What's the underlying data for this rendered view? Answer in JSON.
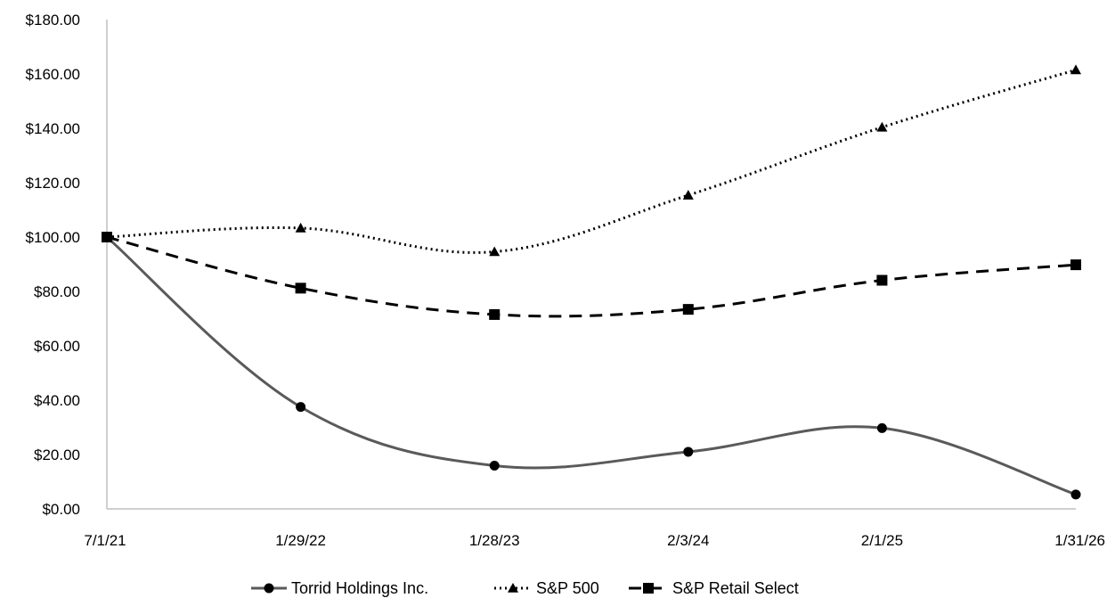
{
  "chart_data": {
    "type": "line",
    "title": "",
    "xlabel": "",
    "ylabel": "",
    "categories": [
      "7/1/21",
      "1/29/22",
      "1/28/23",
      "2/3/24",
      "2/1/25",
      "1/31/26"
    ],
    "y_ticks": [
      "$0.00",
      "$20.00",
      "$40.00",
      "$60.00",
      "$80.00",
      "$100.00",
      "$120.00",
      "$140.00",
      "$160.00",
      "$180.00"
    ],
    "ylim": [
      0,
      180
    ],
    "grid": false,
    "legend_position": "bottom",
    "series": [
      {
        "name": "Torrid Holdings Inc.",
        "values": [
          100.0,
          37.5,
          15.9,
          21.0,
          29.7,
          5.3
        ],
        "color": "#5a5a5a",
        "marker": "circle",
        "line_style": "solid"
      },
      {
        "name": "S&P 500",
        "values": [
          100.0,
          103.3,
          94.6,
          115.4,
          140.4,
          161.5
        ],
        "color": "#000000",
        "marker": "triangle",
        "line_style": "dotted"
      },
      {
        "name": "S&P Retail Select",
        "values": [
          100.0,
          81.2,
          71.5,
          73.4,
          84.1,
          89.8
        ],
        "color": "#000000",
        "marker": "square",
        "line_style": "dashed"
      }
    ]
  }
}
